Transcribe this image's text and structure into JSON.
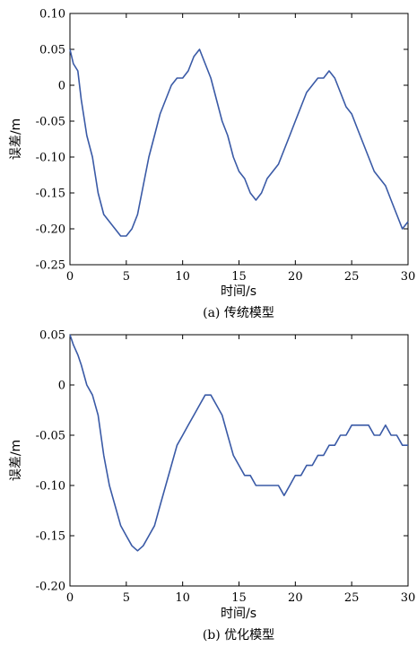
{
  "chart_data": [
    {
      "type": "line",
      "caption": "(a) 传统模型",
      "xlabel": "时间/s",
      "ylabel": "误差/m",
      "xlim": [
        0,
        30
      ],
      "ylim": [
        -0.25,
        0.1
      ],
      "xticks": [
        "0",
        "5",
        "10",
        "15",
        "20",
        "25",
        "30"
      ],
      "yticks": [
        "0.10",
        "0.05",
        "0",
        "-0.05",
        "-0.10",
        "-0.15",
        "-0.20",
        "-0.25"
      ],
      "color": "#3a5aa6",
      "series": [
        {
          "x": [
            0,
            0.3,
            0.7,
            1.0,
            1.5,
            2.0,
            2.5,
            3.0,
            3.5,
            4.0,
            4.5,
            5.0,
            5.5,
            6.0,
            6.5,
            7.0,
            7.5,
            8.0,
            8.5,
            9.0,
            9.5,
            10.0,
            10.5,
            11.0,
            11.5,
            12.0,
            12.5,
            13.0,
            13.5,
            14.0,
            14.5,
            15.0,
            15.5,
            16.0,
            16.5,
            17.0,
            17.5,
            18.0,
            18.5,
            19.0,
            19.5,
            20.0,
            20.5,
            21.0,
            21.5,
            22.0,
            22.5,
            23.0,
            23.5,
            24.0,
            24.5,
            25.0,
            25.5,
            26.0,
            26.5,
            27.0,
            27.5,
            28.0,
            28.5,
            29.0,
            29.5,
            30.0
          ],
          "y": [
            0.05,
            0.03,
            0.02,
            -0.02,
            -0.07,
            -0.1,
            -0.15,
            -0.18,
            -0.19,
            -0.2,
            -0.21,
            -0.21,
            -0.2,
            -0.18,
            -0.14,
            -0.1,
            -0.07,
            -0.04,
            -0.02,
            0.0,
            0.01,
            0.01,
            0.02,
            0.04,
            0.05,
            0.03,
            0.01,
            -0.02,
            -0.05,
            -0.07,
            -0.1,
            -0.12,
            -0.13,
            -0.15,
            -0.16,
            -0.15,
            -0.13,
            -0.12,
            -0.11,
            -0.09,
            -0.07,
            -0.05,
            -0.03,
            -0.01,
            0.0,
            0.01,
            0.01,
            0.02,
            0.01,
            -0.01,
            -0.03,
            -0.04,
            -0.06,
            -0.08,
            -0.1,
            -0.12,
            -0.13,
            -0.14,
            -0.16,
            -0.18,
            -0.2,
            -0.19
          ]
        }
      ]
    },
    {
      "type": "line",
      "caption": "(b) 优化模型",
      "xlabel": "时间/s",
      "ylabel": "误差/m",
      "xlim": [
        0,
        30
      ],
      "ylim": [
        -0.2,
        0.05
      ],
      "xticks": [
        "0",
        "5",
        "10",
        "15",
        "20",
        "25",
        "30"
      ],
      "yticks": [
        "0.05",
        "0",
        "-0.05",
        "-0.10",
        "-0.15",
        "-0.20"
      ],
      "color": "#3a5aa6",
      "series": [
        {
          "x": [
            0,
            0.3,
            0.7,
            1.0,
            1.5,
            2.0,
            2.5,
            3.0,
            3.5,
            4.0,
            4.5,
            5.0,
            5.5,
            6.0,
            6.5,
            7.0,
            7.5,
            8.0,
            8.5,
            9.0,
            9.5,
            10.0,
            10.5,
            11.0,
            11.5,
            12.0,
            12.5,
            13.0,
            13.5,
            14.0,
            14.5,
            15.0,
            15.5,
            16.0,
            16.5,
            17.0,
            17.5,
            18.0,
            18.5,
            19.0,
            19.5,
            20.0,
            20.5,
            21.0,
            21.5,
            22.0,
            22.5,
            23.0,
            23.5,
            24.0,
            24.5,
            25.0,
            25.5,
            26.0,
            26.5,
            27.0,
            27.5,
            28.0,
            28.5,
            29.0,
            29.5,
            30.0
          ],
          "y": [
            0.05,
            0.04,
            0.03,
            0.02,
            0.0,
            -0.01,
            -0.03,
            -0.07,
            -0.1,
            -0.12,
            -0.14,
            -0.15,
            -0.16,
            -0.165,
            -0.16,
            -0.15,
            -0.14,
            -0.12,
            -0.1,
            -0.08,
            -0.06,
            -0.05,
            -0.04,
            -0.03,
            -0.02,
            -0.01,
            -0.01,
            -0.02,
            -0.03,
            -0.05,
            -0.07,
            -0.08,
            -0.09,
            -0.09,
            -0.1,
            -0.1,
            -0.1,
            -0.1,
            -0.1,
            -0.11,
            -0.1,
            -0.09,
            -0.09,
            -0.08,
            -0.08,
            -0.07,
            -0.07,
            -0.06,
            -0.06,
            -0.05,
            -0.05,
            -0.04,
            -0.04,
            -0.04,
            -0.04,
            -0.05,
            -0.05,
            -0.04,
            -0.05,
            -0.05,
            -0.06,
            -0.06
          ]
        }
      ]
    }
  ]
}
